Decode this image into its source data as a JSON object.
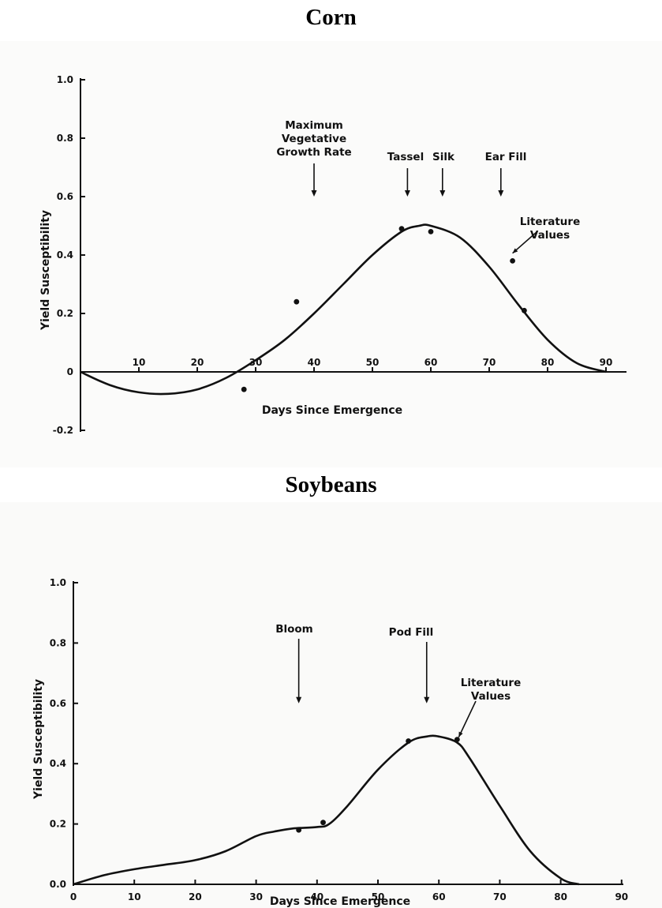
{
  "figure_titles": {
    "corn": "Corn",
    "soybeans": "Soybeans"
  },
  "colors": {
    "ink": "#111111",
    "background": "#ffffff"
  },
  "chart_data": [
    {
      "type": "line",
      "title": "Corn",
      "xlabel": "Days Since Emergence",
      "ylabel": "Yield Susceptibility",
      "xlim": [
        0,
        93
      ],
      "ylim": [
        -0.2,
        1.0
      ],
      "xticks": [
        10,
        20,
        30,
        40,
        50,
        60,
        70,
        80,
        90
      ],
      "xtick_labels": [
        "10",
        "20",
        "30",
        "40",
        "50",
        "60",
        "70",
        "80",
        "90"
      ],
      "yticks": [
        -0.2,
        0,
        0.2,
        0.4,
        0.6,
        0.8,
        1.0
      ],
      "ytick_labels": [
        "-0.2",
        "0",
        "0.2",
        "0.4",
        "0.6",
        "0.8",
        "1.0"
      ],
      "grid": false,
      "curve": {
        "x": [
          0,
          5,
          10,
          15,
          20,
          25,
          30,
          35,
          40,
          45,
          50,
          55,
          58,
          60,
          65,
          70,
          75,
          80,
          85,
          90
        ],
        "y": [
          0.0,
          -0.045,
          -0.07,
          -0.075,
          -0.06,
          -0.02,
          0.04,
          0.11,
          0.2,
          0.3,
          0.4,
          0.48,
          0.5,
          0.5,
          0.46,
          0.36,
          0.23,
          0.11,
          0.03,
          0.0
        ]
      },
      "points": {
        "name": "Literature Values",
        "x": [
          28,
          37,
          55,
          60,
          74,
          76
        ],
        "y": [
          -0.06,
          0.24,
          0.49,
          0.48,
          0.38,
          0.21
        ]
      },
      "annotations": [
        {
          "lines": [
            "Maximum",
            "Vegetative",
            "Growth Rate"
          ],
          "x": 40,
          "y": 0.6
        },
        {
          "lines": [
            "Tassel"
          ],
          "x": 56,
          "y": 0.6
        },
        {
          "lines": [
            "Silk"
          ],
          "x": 62,
          "y": 0.6
        },
        {
          "lines": [
            "Ear Fill"
          ],
          "x": 72,
          "y": 0.6
        },
        {
          "lines": [
            "Literature",
            "Values"
          ],
          "x": 74,
          "y": 0.39
        }
      ]
    },
    {
      "type": "line",
      "title": "Soybeans",
      "xlabel": "Days Since Emergence",
      "ylabel": "Yield Susceptibility",
      "xlim": [
        0,
        93
      ],
      "ylim": [
        0.0,
        1.0
      ],
      "xticks": [
        0,
        10,
        20,
        30,
        40,
        50,
        60,
        70,
        80,
        90
      ],
      "xtick_labels": [
        "0",
        "10",
        "20",
        "30",
        "40",
        "50",
        "60",
        "70",
        "80",
        "90"
      ],
      "yticks": [
        0.0,
        0.2,
        0.4,
        0.6,
        0.8,
        1.0
      ],
      "ytick_labels": [
        "0.0",
        "0.2",
        "0.4",
        "0.6",
        "0.8",
        "1.0"
      ],
      "grid": false,
      "curve": {
        "x": [
          0,
          5,
          10,
          15,
          20,
          25,
          30,
          33,
          36,
          40,
          42,
          45,
          50,
          55,
          58,
          60,
          63,
          65,
          70,
          75,
          80,
          83
        ],
        "y": [
          0.0,
          0.03,
          0.05,
          0.065,
          0.08,
          0.11,
          0.16,
          0.175,
          0.185,
          0.19,
          0.2,
          0.26,
          0.38,
          0.47,
          0.49,
          0.49,
          0.47,
          0.42,
          0.26,
          0.11,
          0.02,
          0.0
        ]
      },
      "points": {
        "name": "Literature Values",
        "x": [
          37,
          41,
          55,
          63
        ],
        "y": [
          0.18,
          0.205,
          0.475,
          0.48
        ]
      },
      "annotations": [
        {
          "lines": [
            "Bloom"
          ],
          "x": 37,
          "y": 0.6
        },
        {
          "lines": [
            "Pod Fill"
          ],
          "x": 58,
          "y": 0.6
        },
        {
          "lines": [
            "Literature",
            "Values"
          ],
          "x": 63,
          "y": 0.48
        }
      ]
    }
  ]
}
